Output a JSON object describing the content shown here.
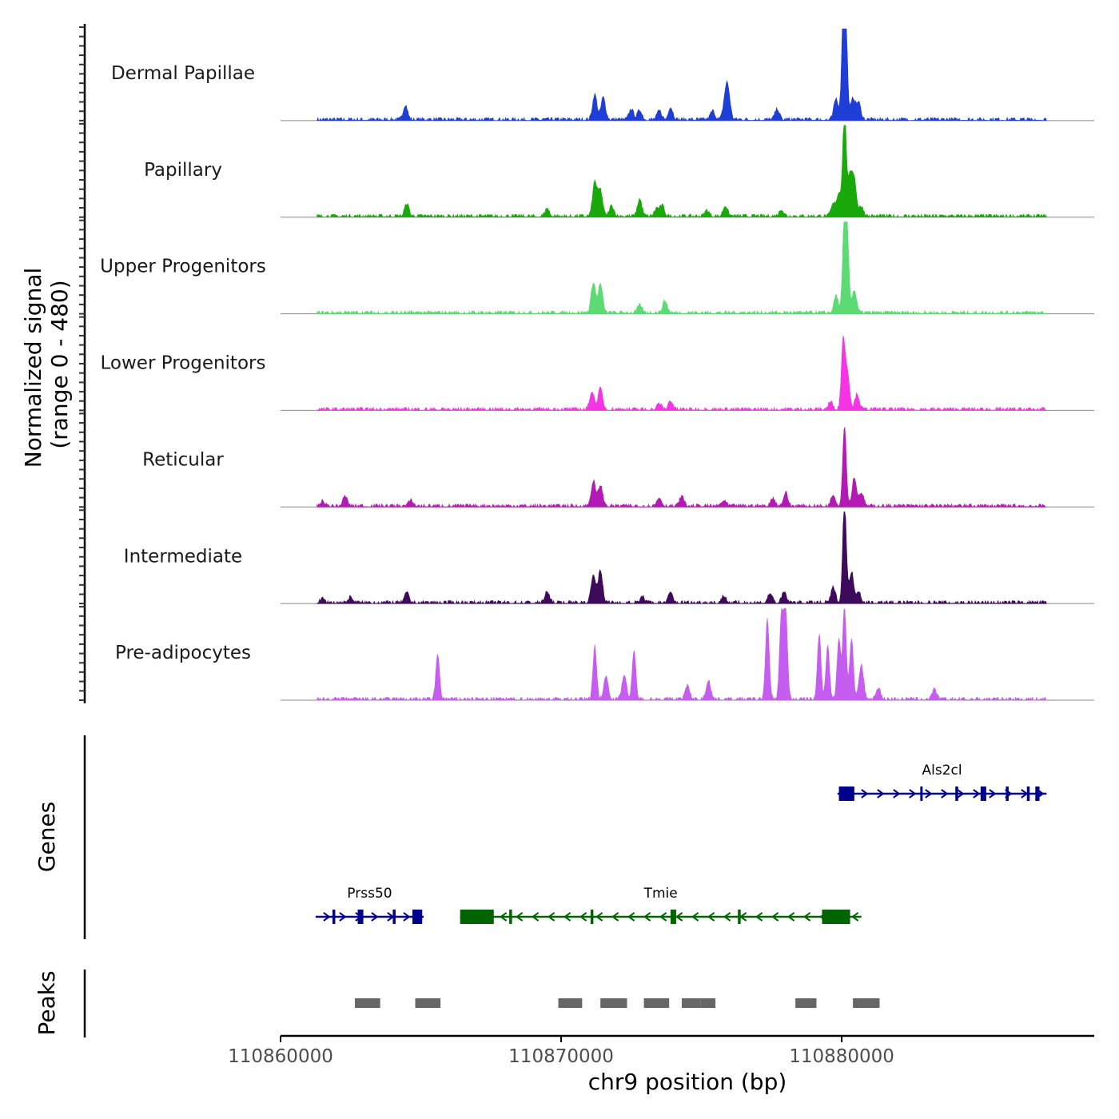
{
  "chart_data": {
    "type": "area",
    "title": "",
    "xlabel": "chr9 position (bp)",
    "ylabel": "Normalized signal\n(range 0 - 480)",
    "ylabel_lines": [
      "Normalized signal",
      "(range 0 - 480)"
    ],
    "xlim": [
      110860000,
      110889000
    ],
    "x_ticks": [
      110860000,
      110870000,
      110880000
    ],
    "x_tick_labels": [
      "110860000",
      "110870000",
      "110880000"
    ],
    "signal_ylim": [
      0,
      480
    ],
    "data_xrange": [
      110861300,
      110887300
    ],
    "tracks": [
      {
        "name": "Dermal Papillae",
        "color": "#1f3ed6",
        "peaks": [
          [
            110864450,
            75
          ],
          [
            110871200,
            130
          ],
          [
            110871500,
            115
          ],
          [
            110872500,
            55
          ],
          [
            110872800,
            50
          ],
          [
            110873500,
            45
          ],
          [
            110873900,
            65
          ],
          [
            110875400,
            45
          ],
          [
            110875850,
            100
          ],
          [
            110875950,
            140
          ],
          [
            110877700,
            55
          ],
          [
            110879800,
            110
          ],
          [
            110880050,
            290
          ],
          [
            110880100,
            460
          ],
          [
            110880150,
            260
          ],
          [
            110880400,
            110
          ],
          [
            110880600,
            90
          ]
        ]
      },
      {
        "name": "Papillary",
        "color": "#1aa90a",
        "peaks": [
          [
            110864500,
            65
          ],
          [
            110869500,
            40
          ],
          [
            110871200,
            180
          ],
          [
            110871400,
            135
          ],
          [
            110871800,
            55
          ],
          [
            110872800,
            90
          ],
          [
            110873400,
            40
          ],
          [
            110873600,
            55
          ],
          [
            110875200,
            30
          ],
          [
            110875850,
            55
          ],
          [
            110877850,
            35
          ],
          [
            110879700,
            60
          ],
          [
            110879900,
            120
          ],
          [
            110880100,
            540
          ],
          [
            110880300,
            200
          ],
          [
            110880450,
            180
          ],
          [
            110880700,
            50
          ]
        ]
      },
      {
        "name": "Upper Progenitors",
        "color": "#5cdb75",
        "peaks": [
          [
            110871150,
            160
          ],
          [
            110871400,
            150
          ],
          [
            110872800,
            40
          ],
          [
            110873700,
            65
          ],
          [
            110879800,
            90
          ],
          [
            110880100,
            500
          ],
          [
            110880200,
            350
          ],
          [
            110880450,
            120
          ]
        ]
      },
      {
        "name": "Lower Progenitors",
        "color": "#f534e6",
        "peaks": [
          [
            110871100,
            95
          ],
          [
            110871400,
            110
          ],
          [
            110873500,
            30
          ],
          [
            110873900,
            45
          ],
          [
            110879600,
            40
          ],
          [
            110880050,
            350
          ],
          [
            110880200,
            200
          ],
          [
            110880550,
            80
          ]
        ]
      },
      {
        "name": "Reticular",
        "color": "#b31ab5",
        "peaks": [
          [
            110861500,
            25
          ],
          [
            110862300,
            50
          ],
          [
            110864650,
            30
          ],
          [
            110871150,
            130
          ],
          [
            110871400,
            110
          ],
          [
            110873500,
            45
          ],
          [
            110874300,
            50
          ],
          [
            110875800,
            30
          ],
          [
            110877550,
            40
          ],
          [
            110878000,
            70
          ],
          [
            110879700,
            60
          ],
          [
            110880100,
            420
          ],
          [
            110880450,
            150
          ],
          [
            110880700,
            70
          ]
        ]
      },
      {
        "name": "Intermediate",
        "color": "#3e0a5c",
        "peaks": [
          [
            110861500,
            20
          ],
          [
            110862500,
            30
          ],
          [
            110864500,
            50
          ],
          [
            110869500,
            60
          ],
          [
            110871150,
            150
          ],
          [
            110871400,
            170
          ],
          [
            110872900,
            30
          ],
          [
            110873900,
            50
          ],
          [
            110875800,
            35
          ],
          [
            110877450,
            50
          ],
          [
            110877950,
            55
          ],
          [
            110879700,
            80
          ],
          [
            110880100,
            540
          ],
          [
            110880350,
            160
          ],
          [
            110880600,
            60
          ]
        ]
      },
      {
        "name": "Pre-adipocytes",
        "color": "#c55df0",
        "peaks": [
          [
            110865600,
            240
          ],
          [
            110871200,
            280
          ],
          [
            110871600,
            120
          ],
          [
            110872250,
            130
          ],
          [
            110872600,
            250
          ],
          [
            110874500,
            70
          ],
          [
            110875250,
            100
          ],
          [
            110877350,
            420
          ],
          [
            110877850,
            440
          ],
          [
            110878000,
            480
          ],
          [
            110879200,
            340
          ],
          [
            110879500,
            280
          ],
          [
            110879900,
            320
          ],
          [
            110880100,
            480
          ],
          [
            110880350,
            320
          ],
          [
            110880700,
            180
          ],
          [
            110881300,
            60
          ],
          [
            110883300,
            50
          ]
        ]
      }
    ],
    "gene_track_label": "Genes",
    "genes": [
      {
        "name": "Als2cl",
        "strand": "+",
        "color": "#00008b",
        "start": 110879850,
        "end": 110887300,
        "row": 1,
        "exons": [
          [
            110879900,
            110880450
          ],
          [
            110882800,
            110882860
          ],
          [
            110884050,
            110884150
          ],
          [
            110884950,
            110885150
          ],
          [
            110885850,
            110885950
          ],
          [
            110886600,
            110886700
          ],
          [
            110886900,
            110887050
          ]
        ]
      },
      {
        "name": "Prss50",
        "strand": "+",
        "color": "#00008b",
        "start": 110861250,
        "end": 110865100,
        "row": 2,
        "exons": [
          [
            110861850,
            110861950
          ],
          [
            110862750,
            110862950
          ],
          [
            110864000,
            110864100
          ],
          [
            110864700,
            110865050
          ]
        ]
      },
      {
        "name": "Tmie",
        "strand": "-",
        "color": "#006400",
        "start": 110866400,
        "end": 110880700,
        "row": 2,
        "exons": [
          [
            110866400,
            110867600
          ],
          [
            110868150,
            110868250
          ],
          [
            110871050,
            110871150
          ],
          [
            110873900,
            110874100
          ],
          [
            110876300,
            110876400
          ],
          [
            110879300,
            110880300
          ]
        ]
      }
    ],
    "peak_track_label": "Peaks",
    "peak_regions": [
      [
        110862650,
        110863550
      ],
      [
        110864800,
        110865700
      ],
      [
        110869900,
        110870750
      ],
      [
        110871400,
        110872350
      ],
      [
        110872950,
        110873850
      ],
      [
        110874300,
        110874980
      ],
      [
        110874980,
        110875500
      ],
      [
        110878350,
        110879100
      ],
      [
        110880400,
        110881350
      ]
    ]
  }
}
